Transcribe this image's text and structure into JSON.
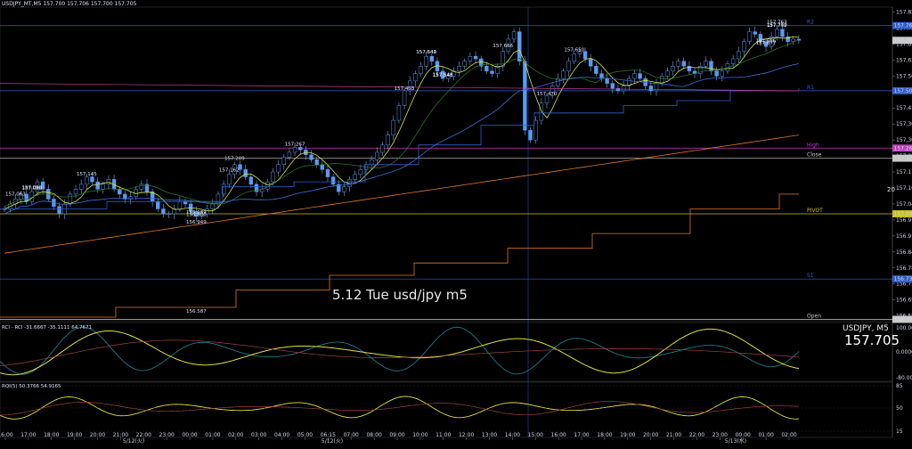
{
  "header": {
    "info": "USDJPY_MT,M5  157.700 157.706 157.700 157.705"
  },
  "title": "5.12 Tue usd/jpy m5",
  "symbol_label": "USDJPY, M5",
  "big_price": "157.705",
  "right_number": "20",
  "panes": {
    "rci_info": "RCI - RCI -31.6667 -35.1111 64.7671",
    "osc_info": "RQI(5) 50.3766 54.9165"
  },
  "chart_data": {
    "type": "candlestick",
    "symbol": "USDJPY",
    "timeframe": "M5",
    "ylim": [
      156.58,
      157.84
    ],
    "y_ticks": [
      "157.820",
      "157.755",
      "157.690",
      "157.625",
      "157.560",
      "157.495",
      "157.430",
      "157.365",
      "157.300",
      "157.235",
      "157.170",
      "157.105",
      "157.040",
      "156.975",
      "156.910",
      "156.845",
      "156.780",
      "156.715",
      "156.650",
      "156.585"
    ],
    "x_ticks": [
      "16:00",
      "17:00",
      "18:00",
      "19:00",
      "20:00",
      "21:00",
      "22:00",
      "23:00",
      "00:00",
      "01:00",
      "02:00",
      "03:00",
      "04:00",
      "05:00",
      "06:15",
      "07:00",
      "08:00",
      "09:00",
      "10:00",
      "11:00",
      "12:00",
      "13:00",
      "14:00",
      "15:00",
      "16:00",
      "17:00",
      "18:00",
      "19:00",
      "20:00",
      "21:00",
      "22:00",
      "23:00",
      "00:00",
      "01:00",
      "02:00"
    ],
    "date_labels": [
      "5/12(火)",
      "5/12(火)",
      "5/13(水)"
    ],
    "close_series": [
      157.02,
      157.04,
      157.06,
      157.08,
      157.05,
      157.09,
      157.13,
      157.1,
      157.06,
      157.03,
      157.0,
      157.04,
      157.08,
      157.1,
      157.12,
      157.15,
      157.13,
      157.1,
      157.12,
      157.14,
      157.1,
      157.08,
      157.06,
      157.07,
      157.1,
      157.12,
      157.09,
      157.05,
      157.02,
      157.0,
      157.0,
      157.02,
      157.05,
      157.04,
      157.01,
      156.99,
      157.0,
      157.02,
      157.04,
      157.08,
      157.12,
      157.16,
      157.2,
      157.18,
      157.15,
      157.12,
      157.09,
      157.1,
      157.13,
      157.17,
      157.2,
      157.23,
      157.25,
      157.27,
      157.26,
      157.24,
      157.22,
      157.2,
      157.18,
      157.15,
      157.12,
      157.09,
      157.11,
      157.14,
      157.16,
      157.18,
      157.2,
      157.22,
      157.25,
      157.28,
      157.32,
      157.38,
      157.44,
      157.5,
      157.54,
      157.57,
      157.6,
      157.64,
      157.62,
      157.58,
      157.55,
      157.56,
      157.58,
      157.6,
      157.62,
      157.64,
      157.63,
      157.6,
      157.58,
      157.57,
      157.6,
      157.66,
      157.71,
      157.74,
      157.62,
      157.34,
      157.3,
      157.38,
      157.45,
      157.48,
      157.52,
      157.55,
      157.58,
      157.62,
      157.65,
      157.66,
      157.63,
      157.6,
      157.57,
      157.55,
      157.53,
      157.51,
      157.5,
      157.52,
      157.55,
      157.57,
      157.55,
      157.52,
      157.5,
      157.53,
      157.56,
      157.58,
      157.6,
      157.62,
      157.6,
      157.58,
      157.57,
      157.6,
      157.62,
      157.58,
      157.56,
      157.58,
      157.61,
      157.63,
      157.66,
      157.7,
      157.74,
      157.73,
      157.7,
      157.68,
      157.72,
      157.75,
      157.72,
      157.7,
      157.71,
      157.705
    ],
    "annotations": [
      {
        "price": 157.145,
        "text": "157.145"
      },
      {
        "price": 157.162,
        "text": "157.162"
      },
      {
        "price": 157.209,
        "text": "157.209"
      },
      {
        "price": 157.267,
        "text": "157.267"
      },
      {
        "price": 157.086,
        "text": "157.086"
      },
      {
        "price": 157.063,
        "text": "157.063"
      },
      {
        "price": 157.09,
        "text": "157.090"
      },
      {
        "price": 156.989,
        "text": "156.989"
      },
      {
        "price": 156.98,
        "text": "156.980"
      },
      {
        "price": 156.949,
        "text": "156.949"
      },
      {
        "price": 157.65,
        "text": "157.650"
      },
      {
        "price": 157.64,
        "text": "157.640"
      },
      {
        "price": 157.749,
        "text": "157.749"
      },
      {
        "price": 157.548,
        "text": "157.548"
      },
      {
        "price": 157.546,
        "text": "157.546"
      },
      {
        "price": 157.666,
        "text": "157.666"
      },
      {
        "price": 157.641,
        "text": "157.641"
      },
      {
        "price": 157.752,
        "text": "157.752"
      },
      {
        "price": 157.763,
        "text": "157.763"
      },
      {
        "price": 157.677,
        "text": "157.677"
      },
      {
        "price": 157.686,
        "text": "157.686"
      },
      {
        "price": 157.493,
        "text": "157.493"
      },
      {
        "price": 157.47,
        "text": "157.470"
      },
      {
        "price": 156.587,
        "text": "156.587"
      }
    ],
    "levels": [
      {
        "name": "R2",
        "price": 157.765,
        "color": "#2f5fd0"
      },
      {
        "name": "R1",
        "price": 157.5,
        "color": "#2f5fd0"
      },
      {
        "name": "High",
        "price": 157.267,
        "color": "#c040c0"
      },
      {
        "name": "Close",
        "price": 157.226,
        "color": "#c8c8c8"
      },
      {
        "name": "PIVOT",
        "price": 157.0,
        "color": "#c8c020"
      },
      {
        "name": "S1",
        "price": 156.735,
        "color": "#2f5fd0"
      },
      {
        "name": "Open",
        "price": 156.571,
        "color": "#c8c8c8"
      }
    ],
    "price_tags": [
      {
        "text": "157.765",
        "color": "#2f5fd0"
      },
      {
        "text": "157.705",
        "color": "#c8c8c8"
      },
      {
        "text": "157.500",
        "color": "#2f5fd0"
      },
      {
        "text": "157.267",
        "color": "#c040c0"
      },
      {
        "text": "157.226",
        "color": "#c8c8c8"
      },
      {
        "text": "157.000",
        "color": "#c8c020"
      },
      {
        "text": "156.735",
        "color": "#2f5fd0"
      },
      {
        "text": "156.571",
        "color": "#c8c8c8"
      }
    ],
    "rci_ticks": [
      "100.0000",
      "0.0000",
      "-80.0000"
    ],
    "osc_ticks": [
      "85",
      "50",
      "15"
    ],
    "grid": false,
    "colors": {
      "candle": "#4a8ee8",
      "ma_fast": "#cfe84a",
      "ma_mid": "#3a6fd8",
      "ma_slow": "#e07a20",
      "ma_green": "#2e7d32",
      "pink": "#c04090"
    }
  }
}
